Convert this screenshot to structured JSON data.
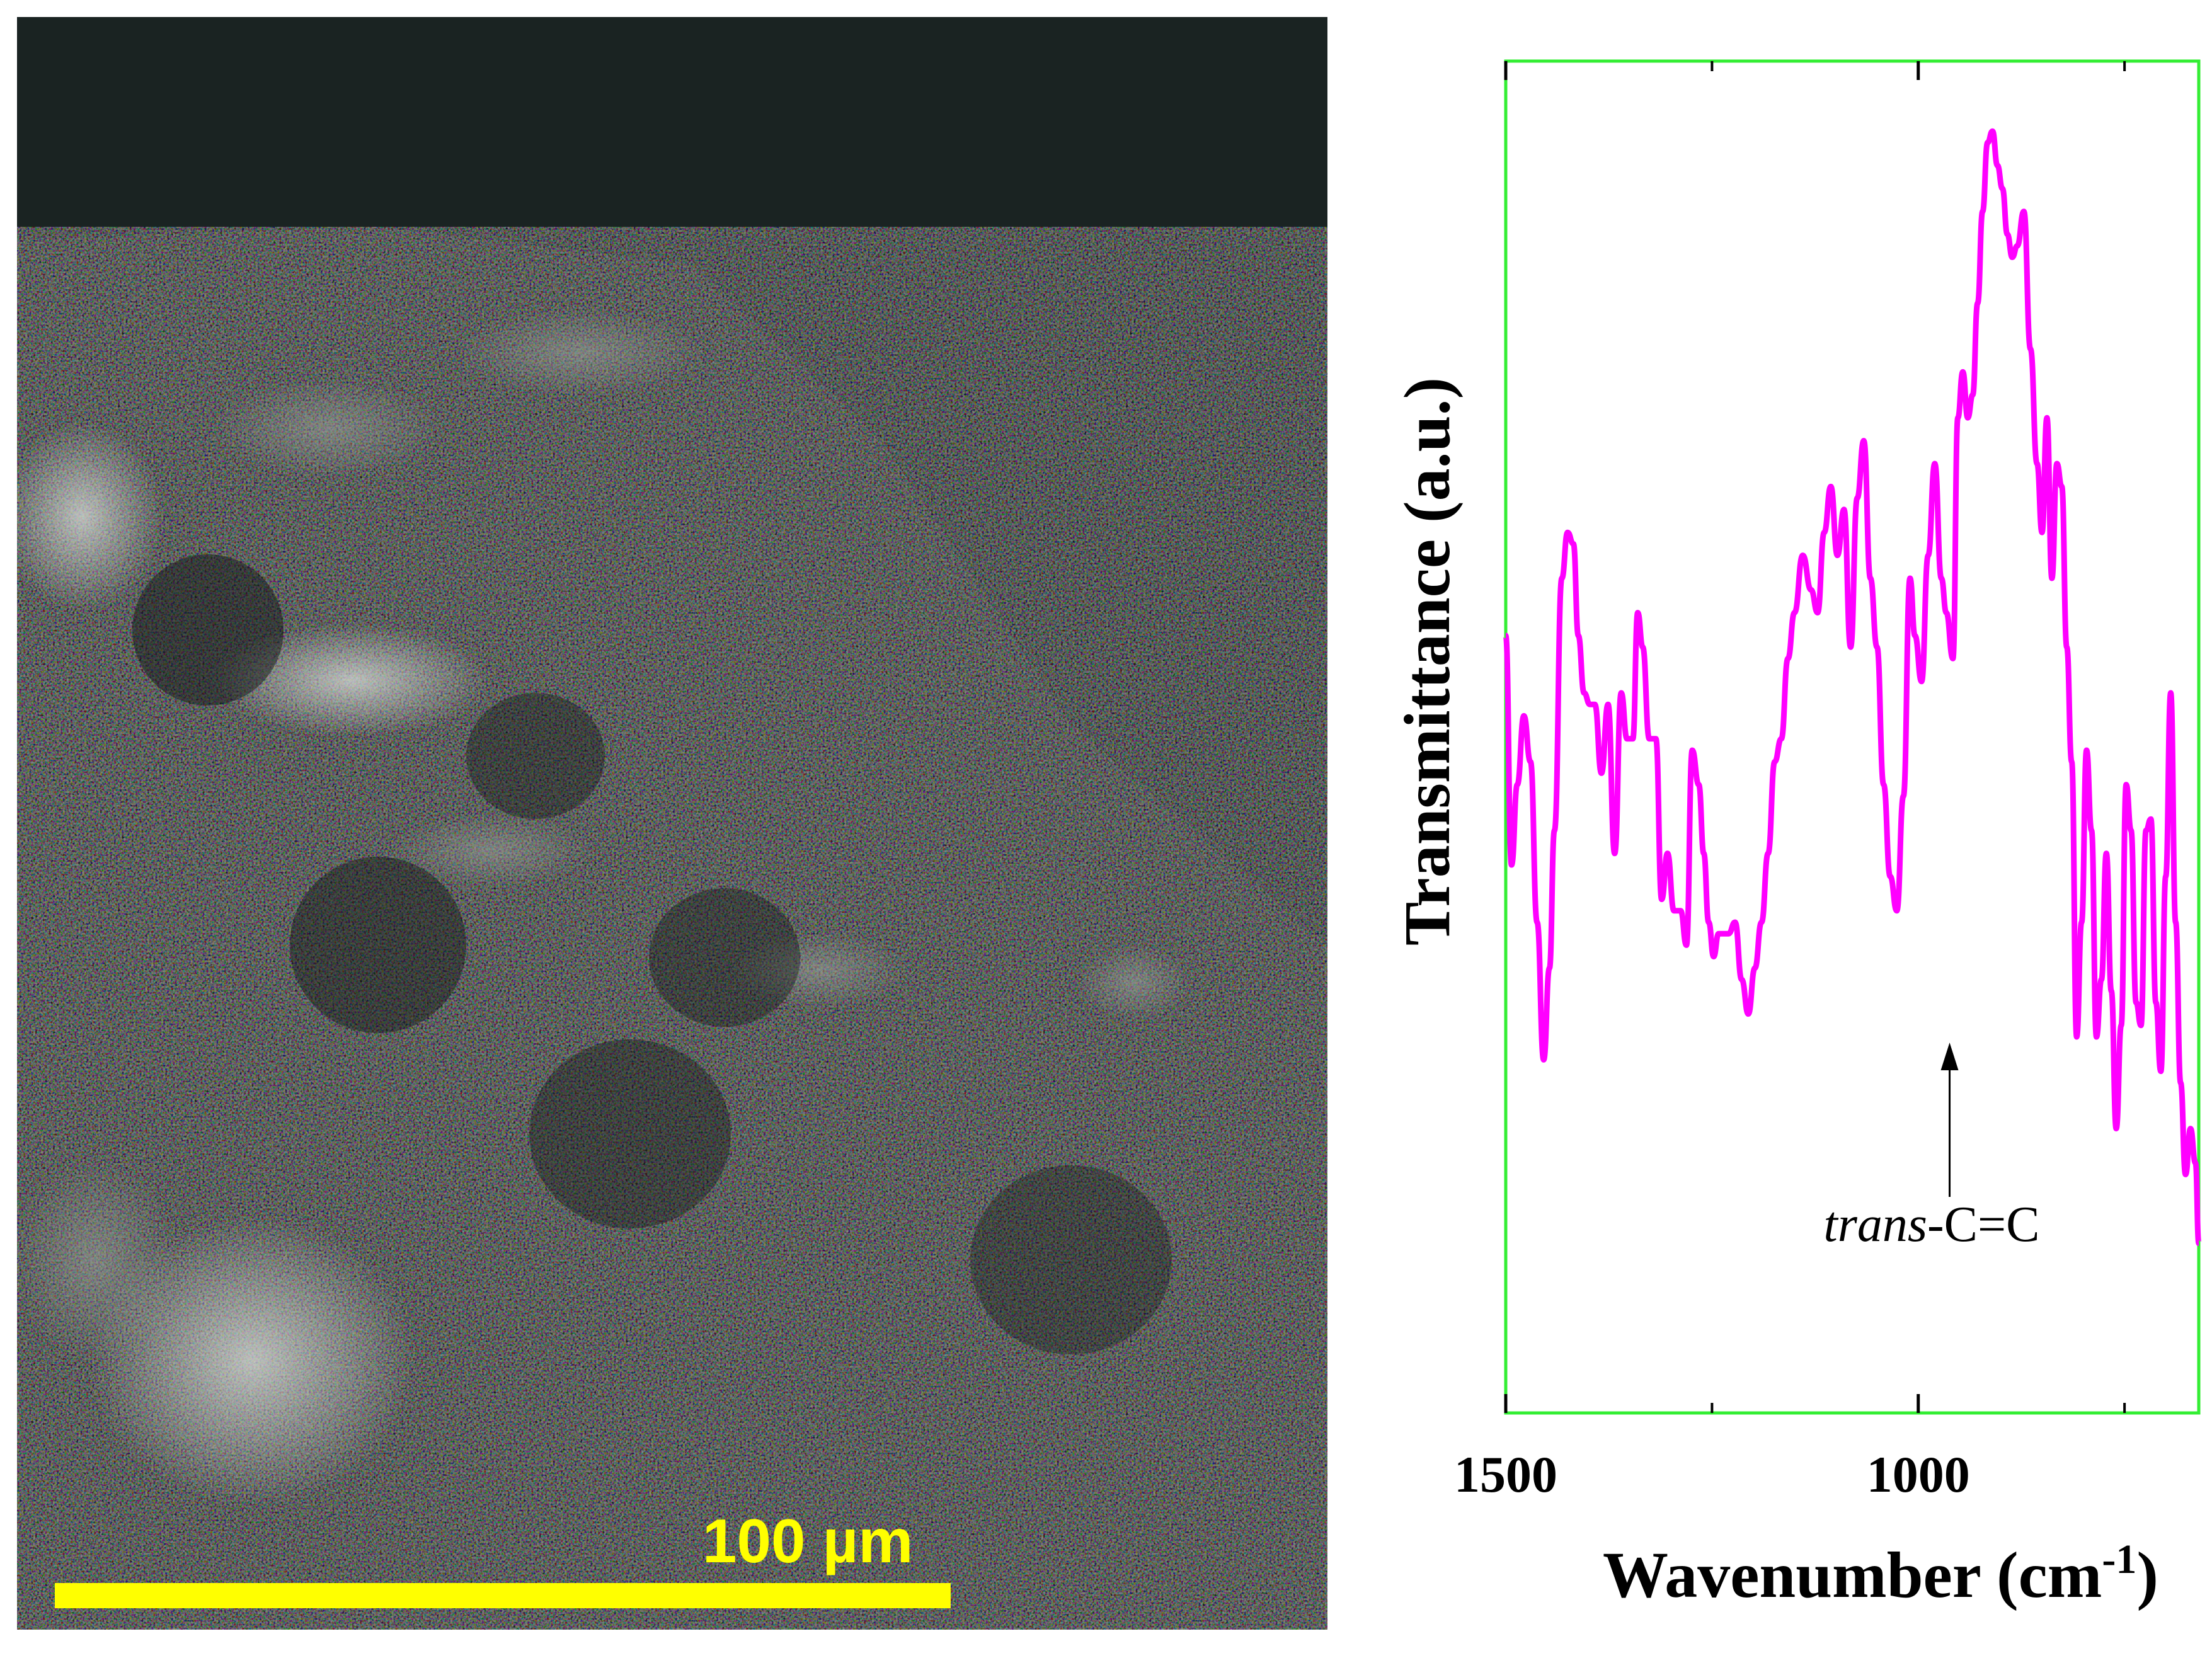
{
  "micrograph": {
    "scale_bar_label": "100 µm",
    "scale_bar_color": "#ffff00"
  },
  "chart_data": {
    "type": "line",
    "xlabel": "Wavenumber (cm",
    "xlabel_sup": "-1",
    "xlabel_end": ")",
    "ylabel": "Transmittance (a.u.)",
    "x_reversed": true,
    "xlim": [
      1500,
      660
    ],
    "ylim": [
      0,
      100
    ],
    "x_ticks": [
      1500,
      1000
    ],
    "x_minor_ticks": [
      1250,
      750
    ],
    "grid": false,
    "frame_color": "#33ee33",
    "series": [
      {
        "color": "#ff00ff",
        "x": [
          1500,
          1493,
          1486,
          1478,
          1470,
          1462,
          1454,
          1447,
          1441,
          1432,
          1425,
          1418,
          1412,
          1405,
          1398,
          1392,
          1384,
          1376,
          1368,
          1360,
          1353,
          1346,
          1340,
          1334,
          1326,
          1318,
          1311,
          1304,
          1296,
          1288,
          1281,
          1274,
          1266,
          1260,
          1254,
          1248,
          1242,
          1236,
          1230,
          1222,
          1214,
          1206,
          1198,
          1190,
          1182,
          1174,
          1166,
          1158,
          1150,
          1140,
          1130,
          1122,
          1114,
          1106,
          1098,
          1090,
          1082,
          1074,
          1066,
          1058,
          1050,
          1042,
          1034,
          1026,
          1018,
          1010,
          1004,
          996,
          988,
          980,
          972,
          966,
          958,
          952,
          946,
          940,
          934,
          928,
          922,
          916,
          910,
          904,
          898,
          892,
          886,
          880,
          872,
          864,
          856,
          850,
          844,
          838,
          832,
          826,
          820,
          814,
          808,
          802,
          796,
          790,
          784,
          778,
          772,
          766,
          760,
          754,
          748,
          742,
          736,
          730,
          724,
          718,
          712,
          706,
          700,
          694,
          688,
          682,
          676,
          670,
          664,
          660
        ],
        "y": [
          55,
          35,
          42,
          48,
          44,
          30,
          18,
          26,
          38,
          60,
          64,
          63,
          55,
          50,
          49,
          49,
          43,
          49,
          36,
          50,
          46,
          46,
          57,
          54,
          46,
          46,
          32,
          36,
          31,
          31,
          28,
          45,
          42,
          36,
          30,
          27,
          29,
          29,
          29,
          30,
          25,
          22,
          26,
          30,
          36,
          44,
          46,
          53,
          57,
          62,
          59,
          57,
          64,
          68,
          62,
          66,
          54,
          67,
          72,
          60,
          54,
          42,
          34,
          31,
          41,
          60,
          55,
          51,
          62,
          70,
          60,
          57,
          53,
          74,
          78,
          74,
          76,
          84,
          92,
          98,
          99,
          96,
          94,
          90,
          88,
          89,
          92,
          80,
          70,
          64,
          74,
          60,
          70,
          68,
          54,
          44,
          20,
          30,
          45,
          38,
          20,
          25,
          36,
          24,
          12,
          21,
          42,
          38,
          23,
          21,
          38,
          39,
          23,
          17,
          34,
          50,
          30,
          16,
          8,
          12,
          9,
          2
        ]
      }
    ],
    "annotation": {
      "italic": "trans",
      "text": "-C=C",
      "x": 962
    }
  }
}
